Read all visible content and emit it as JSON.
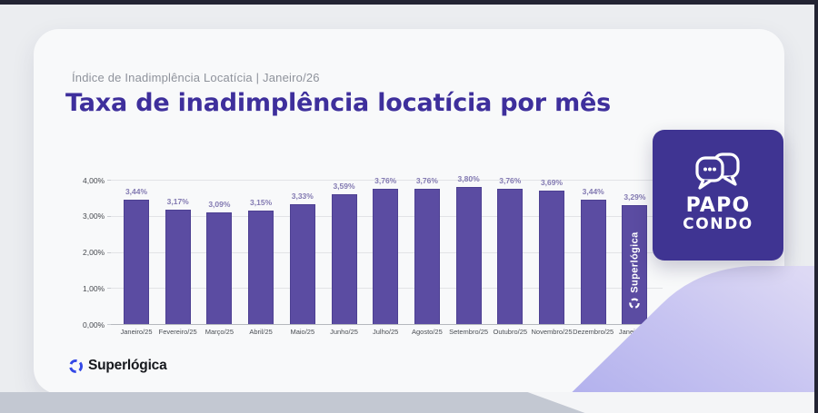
{
  "header": {
    "eyebrow": "Índice de Inadimplência Locatícia | Janeiro/26",
    "title": "Taxa de inadimplência locatícia por mês"
  },
  "chart_data": {
    "type": "bar",
    "title": "Taxa de inadimplência locatícia por mês",
    "categories": [
      "Janeiro/25",
      "Fevereiro/25",
      "Março/25",
      "Abril/25",
      "Maio/25",
      "Junho/25",
      "Julho/25",
      "Agosto/25",
      "Setembro/25",
      "Outubro/25",
      "Novembro/25",
      "Dezembro/25",
      "Janeiro/26"
    ],
    "values": [
      3.44,
      3.17,
      3.09,
      3.15,
      3.33,
      3.59,
      3.76,
      3.76,
      3.8,
      3.76,
      3.69,
      3.44,
      3.29
    ],
    "value_labels": [
      "3,44%",
      "3,17%",
      "3,09%",
      "3,15%",
      "3,33%",
      "3,59%",
      "3,76%",
      "3,76%",
      "3,80%",
      "3,76%",
      "3,69%",
      "3,44%",
      "3,29%"
    ],
    "y_ticks": [
      "0,00%",
      "1,00%",
      "2,00%",
      "3,00%",
      "4,00%"
    ],
    "ylim": [
      0,
      4
    ],
    "grid": true,
    "legend": "none",
    "bar_color": "#5b4ca2",
    "watermark_text": "Superlógica"
  },
  "branding": {
    "footer_logo_text": "Superlógica",
    "badge_line1": "PAPO",
    "badge_line2": "CONDO"
  },
  "colors": {
    "accent_purple": "#3e2f9c",
    "bar_purple": "#5b4ca2",
    "badge_purple": "#3f3492",
    "frame_dark": "#232433",
    "ribbon_lavender": "#b2b0ee"
  }
}
